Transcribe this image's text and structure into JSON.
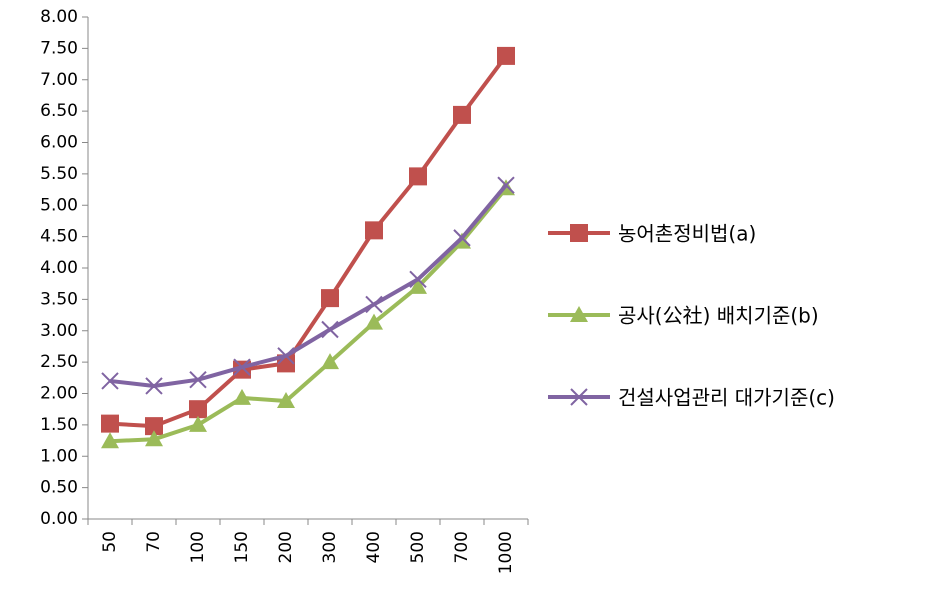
{
  "chart_data": {
    "type": "line",
    "categories": [
      "50",
      "70",
      "100",
      "150",
      "200",
      "300",
      "400",
      "500",
      "700",
      "1000"
    ],
    "series": [
      {
        "name": "농어촌정비법(a)",
        "color": "#c0504d",
        "marker": "square",
        "values": [
          1.52,
          1.48,
          1.75,
          2.38,
          2.48,
          3.52,
          4.6,
          5.46,
          6.44,
          7.38
        ]
      },
      {
        "name": "공사(公社) 배치기준(b)",
        "color": "#9bbb59",
        "marker": "triangle",
        "values": [
          1.24,
          1.27,
          1.5,
          1.93,
          1.88,
          2.5,
          3.13,
          3.7,
          4.42,
          5.27
        ]
      },
      {
        "name": "건설사업관리 대가기준(c)",
        "color": "#8064a2",
        "marker": "x",
        "values": [
          2.2,
          2.12,
          2.22,
          2.42,
          2.6,
          3.02,
          3.42,
          3.82,
          4.48,
          5.32
        ]
      }
    ],
    "ylim": [
      0,
      8
    ],
    "yticks": [
      {
        "value": 0,
        "label": "0.00"
      },
      {
        "value": 0.5,
        "label": "0.50"
      },
      {
        "value": 1,
        "label": "1.00"
      },
      {
        "value": 1.5,
        "label": "1.50"
      },
      {
        "value": 2,
        "label": "2.00"
      },
      {
        "value": 2.5,
        "label": "2.50"
      },
      {
        "value": 3,
        "label": "3.00"
      },
      {
        "value": 3.5,
        "label": "3.50"
      },
      {
        "value": 4,
        "label": "4.00"
      },
      {
        "value": 4.5,
        "label": "4.50"
      },
      {
        "value": 5,
        "label": "5.00"
      },
      {
        "value": 5.5,
        "label": "5.50"
      },
      {
        "value": 6,
        "label": "6.00"
      },
      {
        "value": 6.5,
        "label": "6.50"
      },
      {
        "value": 7,
        "label": "7.00"
      },
      {
        "value": 7.5,
        "label": "7.50"
      },
      {
        "value": 8,
        "label": "8.00"
      }
    ],
    "grid": false,
    "legend": "right"
  }
}
